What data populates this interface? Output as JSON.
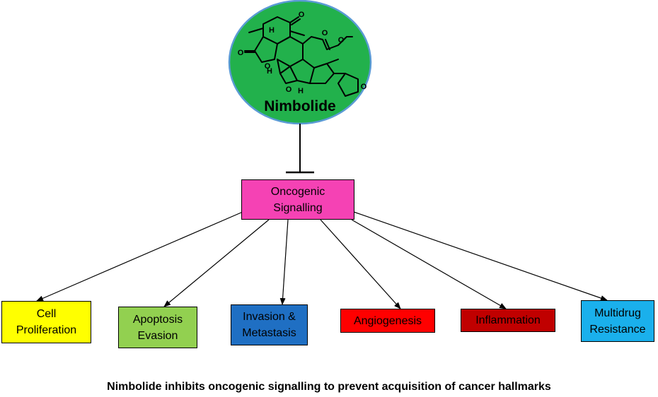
{
  "compound": {
    "name": "Nimbolide",
    "circle_fill": "#22b14c",
    "circle_stroke": "#5b9bd5",
    "structure_labels": {
      "carbonyl_o_top": "O",
      "lactone_o_left": "O",
      "ring_o_left": "O",
      "ester_o_double": "O",
      "ester_o_single": "O",
      "h_left": "H",
      "h_mid": "H",
      "h_bottom": "H",
      "ring_o_bottom": "O",
      "furan_o": "O"
    }
  },
  "center": {
    "label": "Oncogenic\nSignalling",
    "color": "#f542b4"
  },
  "hallmarks": [
    {
      "label": "Cell\nProliferation",
      "color": "#ffff00",
      "text_color": "#000000"
    },
    {
      "label": "Apoptosis\nEvasion",
      "color": "#92d050",
      "text_color": "#000000"
    },
    {
      "label": "Invasion &\nMetastasis",
      "color": "#1f6fc3",
      "text_color": "#000000"
    },
    {
      "label": "Angiogenesis",
      "color": "#ff0000",
      "text_color": "#000000"
    },
    {
      "label": "Inflammation",
      "color": "#c00000",
      "text_color": "#000000"
    },
    {
      "label": "Multidrug\nResistance",
      "color": "#1ab0ec",
      "text_color": "#000000"
    }
  ],
  "caption": "Nimbolide inhibits oncogenic signalling to prevent acquisition of cancer hallmarks"
}
